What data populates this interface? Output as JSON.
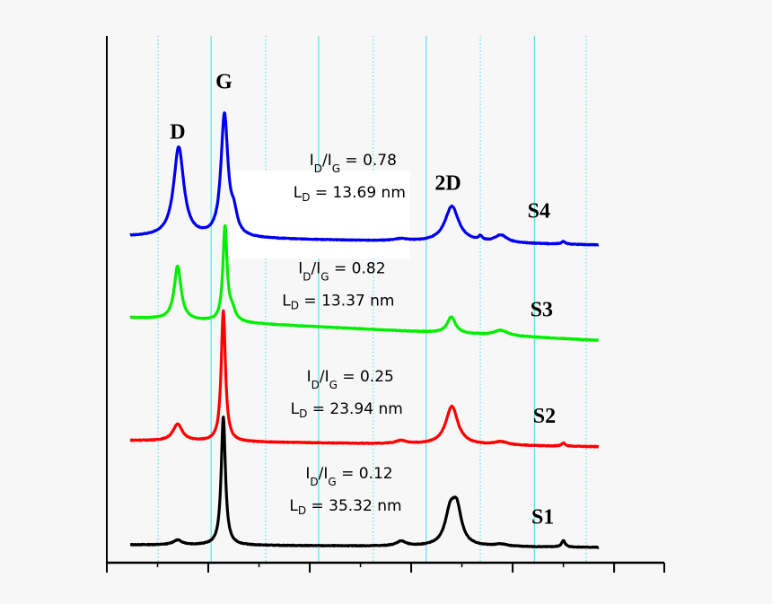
{
  "chart_data": {
    "type": "line",
    "title": "",
    "xlabel": "",
    "ylabel": "",
    "xlim": [
      0,
      100
    ],
    "ylim": [
      0,
      100
    ],
    "grid": {
      "major": "solid",
      "minor": "dotted",
      "color": "#33e0f0"
    },
    "x_major_ticks": [
      0,
      18.2,
      36.4,
      54.6,
      72.8,
      91
    ],
    "x_minor_ticks": [
      9.1,
      27.3,
      45.5,
      63.7,
      81.9
    ],
    "gridlines_solid": [
      18.7,
      38.0,
      57.3,
      76.7
    ],
    "gridlines_dotted": [
      9.2,
      28.5,
      47.8,
      67.0,
      86.0
    ],
    "x_range_data": [
      4.2,
      88.2
    ],
    "series": [
      {
        "name": "S1",
        "color": "#000000",
        "baseline": [
          3.4,
          2.9
        ],
        "peaks": [
          [
            12.7,
            0.9,
            1.0
          ],
          [
            20.9,
            24.4,
            0.45
          ],
          [
            52.8,
            0.9,
            1.0
          ],
          [
            61.6,
            6.0,
            1.1
          ],
          [
            62.8,
            6.3,
            1.0
          ],
          [
            70.7,
            0.4,
            1.5
          ],
          [
            81.9,
            1.2,
            0.4
          ]
        ]
      },
      {
        "name": "S2",
        "color": "#ff0000",
        "baseline": [
          23.2,
          22.0
        ],
        "peaks": [
          [
            12.7,
            3.2,
            1.0
          ],
          [
            20.9,
            24.9,
            0.45
          ],
          [
            52.8,
            0.6,
            1.2
          ],
          [
            61.9,
            7.3,
            1.3
          ],
          [
            70.7,
            0.6,
            1.5
          ],
          [
            81.9,
            0.6,
            0.4
          ]
        ]
      },
      {
        "name": "S3",
        "color": "#00ee00",
        "baseline": [
          46.5,
          42.2
        ],
        "peaks": [
          [
            12.7,
            10.2,
            0.75
          ],
          [
            21.2,
            17.9,
            0.45
          ],
          [
            22.5,
            2.0,
            0.7
          ],
          [
            61.8,
            3.1,
            0.9
          ],
          [
            70.7,
            1.0,
            1.5
          ]
        ]
      },
      {
        "name": "S4",
        "color": "#0000ee",
        "baseline": [
          61.9,
          60.3
        ],
        "peaks": [
          [
            12.9,
            17.0,
            1.1
          ],
          [
            21.1,
            23.0,
            0.75
          ],
          [
            22.8,
            3.5,
            0.7
          ],
          [
            52.8,
            0.4,
            1.5
          ],
          [
            61.9,
            6.8,
            1.5
          ],
          [
            67.0,
            0.8,
            0.4
          ],
          [
            70.7,
            1.4,
            1.3
          ],
          [
            81.9,
            0.5,
            0.4
          ]
        ]
      }
    ],
    "peak_labels": [
      {
        "text": "D",
        "x": 12.7,
        "y": 80.5
      },
      {
        "text": "G",
        "x": 21.0,
        "y": 90.0
      },
      {
        "text": "2D",
        "x": 61.2,
        "y": 70.8
      }
    ],
    "series_labels": [
      {
        "text": "S4",
        "x": 77.5,
        "y": 65.5
      },
      {
        "text": "S3",
        "x": 78.0,
        "y": 46.8
      },
      {
        "text": "S2",
        "x": 78.5,
        "y": 26.6
      },
      {
        "text": "S1",
        "x": 78.2,
        "y": 7.4
      }
    ],
    "annotations": [
      {
        "ratio": "0.78",
        "ld": "13.69 nm",
        "x": 41.5,
        "y": 71.0,
        "boxed": true
      },
      {
        "ratio": "0.82",
        "ld": "13.37 nm",
        "x": 39.5,
        "y": 50.5,
        "boxed": false
      },
      {
        "ratio": "0.25",
        "ld": "23.94 nm",
        "x": 41.0,
        "y": 30.0,
        "boxed": false
      },
      {
        "ratio": "0.12",
        "ld": "35.32 nm",
        "x": 40.8,
        "y": 11.6,
        "boxed": false
      }
    ]
  }
}
